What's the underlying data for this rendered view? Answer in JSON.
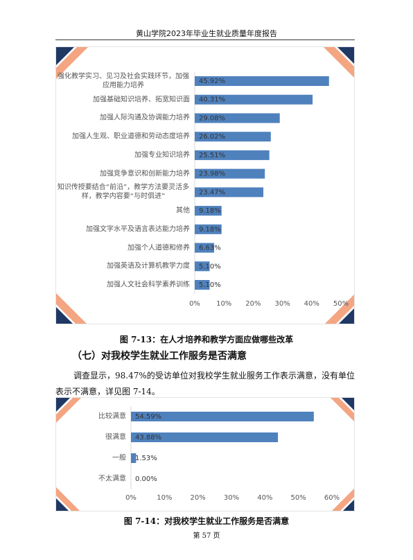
{
  "header": {
    "title": "黄山学院2023年毕业生就业质量年度报告"
  },
  "chart_data": [
    {
      "type": "bar",
      "orientation": "horizontal",
      "categories": [
        "强化教学实习、见习及社会实践环节，加强应用能力培养",
        "加强基础知识培养、拓宽知识面",
        "加强人际沟通及协调能力培养",
        "加强人生观、职业道德和劳动态度培养",
        "加强专业知识培养",
        "加强竞争意识和创新能力培养",
        "知识传授要结合“前沿”，教学方法要灵活多样，教学内容要“与时俱进”",
        "其他",
        "加强文字水平及语言表达能力培养",
        "加强个人道德和修养",
        "加强英语及计算机教学力度",
        "加强人文社会科学素养训练"
      ],
      "values": [
        45.92,
        40.31,
        29.08,
        26.02,
        25.51,
        23.98,
        23.47,
        9.18,
        9.18,
        6.63,
        5.1,
        5.1
      ],
      "value_labels": [
        "45.92%",
        "40.31%",
        "29.08%",
        "26.02%",
        "25.51%",
        "23.98%",
        "23.47%",
        "9.18%",
        "9.18%",
        "6.63%",
        "5.10%",
        "5.10%"
      ],
      "color": "#4f81bd",
      "xlim": [
        0,
        50
      ],
      "xticks": [
        {
          "value": 0,
          "label": "0%"
        },
        {
          "value": 10,
          "label": "10%"
        },
        {
          "value": 20,
          "label": "20%"
        },
        {
          "value": 30,
          "label": "30%"
        },
        {
          "value": 40,
          "label": "40%"
        },
        {
          "value": 50,
          "label": "50%"
        }
      ],
      "grid": false
    },
    {
      "type": "bar",
      "orientation": "horizontal",
      "categories": [
        "比较满意",
        "很满意",
        "一般",
        "不太满意"
      ],
      "values": [
        54.59,
        43.88,
        1.53,
        0
      ],
      "value_labels": [
        "54.59%",
        "43.88%",
        "1.53%",
        "0.00%"
      ],
      "color": "#4f81bd",
      "xlim": [
        0,
        60
      ],
      "xticks": [
        {
          "value": 0,
          "label": "0%"
        },
        {
          "value": 10,
          "label": "10%"
        },
        {
          "value": 20,
          "label": "20%"
        },
        {
          "value": 30,
          "label": "30%"
        },
        {
          "value": 40,
          "label": "40%"
        },
        {
          "value": 50,
          "label": "50%"
        },
        {
          "value": 60,
          "label": "60%"
        }
      ],
      "grid": false
    }
  ],
  "captions": [
    "图 7-13：在人才培养和教学方面应做哪些改革",
    "图 7-14：对我校学生就业工作服务是否满意"
  ],
  "section": {
    "heading": "（七）对我校学生就业工作服务是否满意",
    "paragraph": "调查显示，98.47%的受访单位对我校学生就业服务工作表示满意，没有单位表示不满意，详见图 7-14。"
  },
  "footer": {
    "page": "第 57 页"
  }
}
